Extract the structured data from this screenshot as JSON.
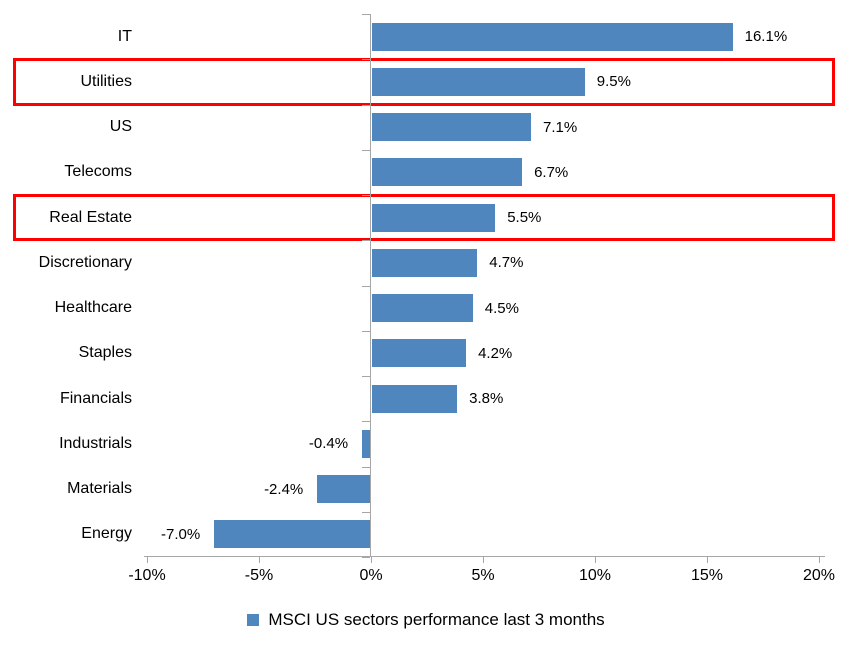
{
  "chart_data": {
    "type": "bar",
    "orientation": "horizontal",
    "title": "",
    "xlabel": "",
    "ylabel": "",
    "xlim": [
      -10,
      20
    ],
    "grid": false,
    "legend": "MSCI US sectors performance last 3 months",
    "legend_position": "bottom-center",
    "categories": [
      "IT",
      "Utilities",
      "US",
      "Telecoms",
      "Real Estate",
      "Discretionary",
      "Healthcare",
      "Staples",
      "Financials",
      "Industrials",
      "Materials",
      "Energy"
    ],
    "values": [
      16.1,
      9.5,
      7.1,
      6.7,
      5.5,
      4.7,
      4.5,
      4.2,
      3.8,
      -0.4,
      -2.4,
      -7.0
    ],
    "data_labels": [
      "16.1%",
      "9.5%",
      "7.1%",
      "6.7%",
      "5.5%",
      "4.7%",
      "4.5%",
      "4.2%",
      "3.8%",
      "-0.4%",
      "-2.4%",
      "-7.0%"
    ],
    "x_tick_values": [
      -10,
      -5,
      0,
      5,
      10,
      15,
      20
    ],
    "x_tick_labels": [
      "-10%",
      "-5%",
      "0%",
      "5%",
      "10%",
      "15%",
      "20%"
    ],
    "highlighted_categories": [
      "Utilities",
      "Real Estate"
    ],
    "colors": {
      "bar": "#4E86BD",
      "highlight_border": "#FF0000",
      "axis": "#A6A6A6",
      "text": "#000000",
      "background": "#FFFFFF"
    }
  }
}
